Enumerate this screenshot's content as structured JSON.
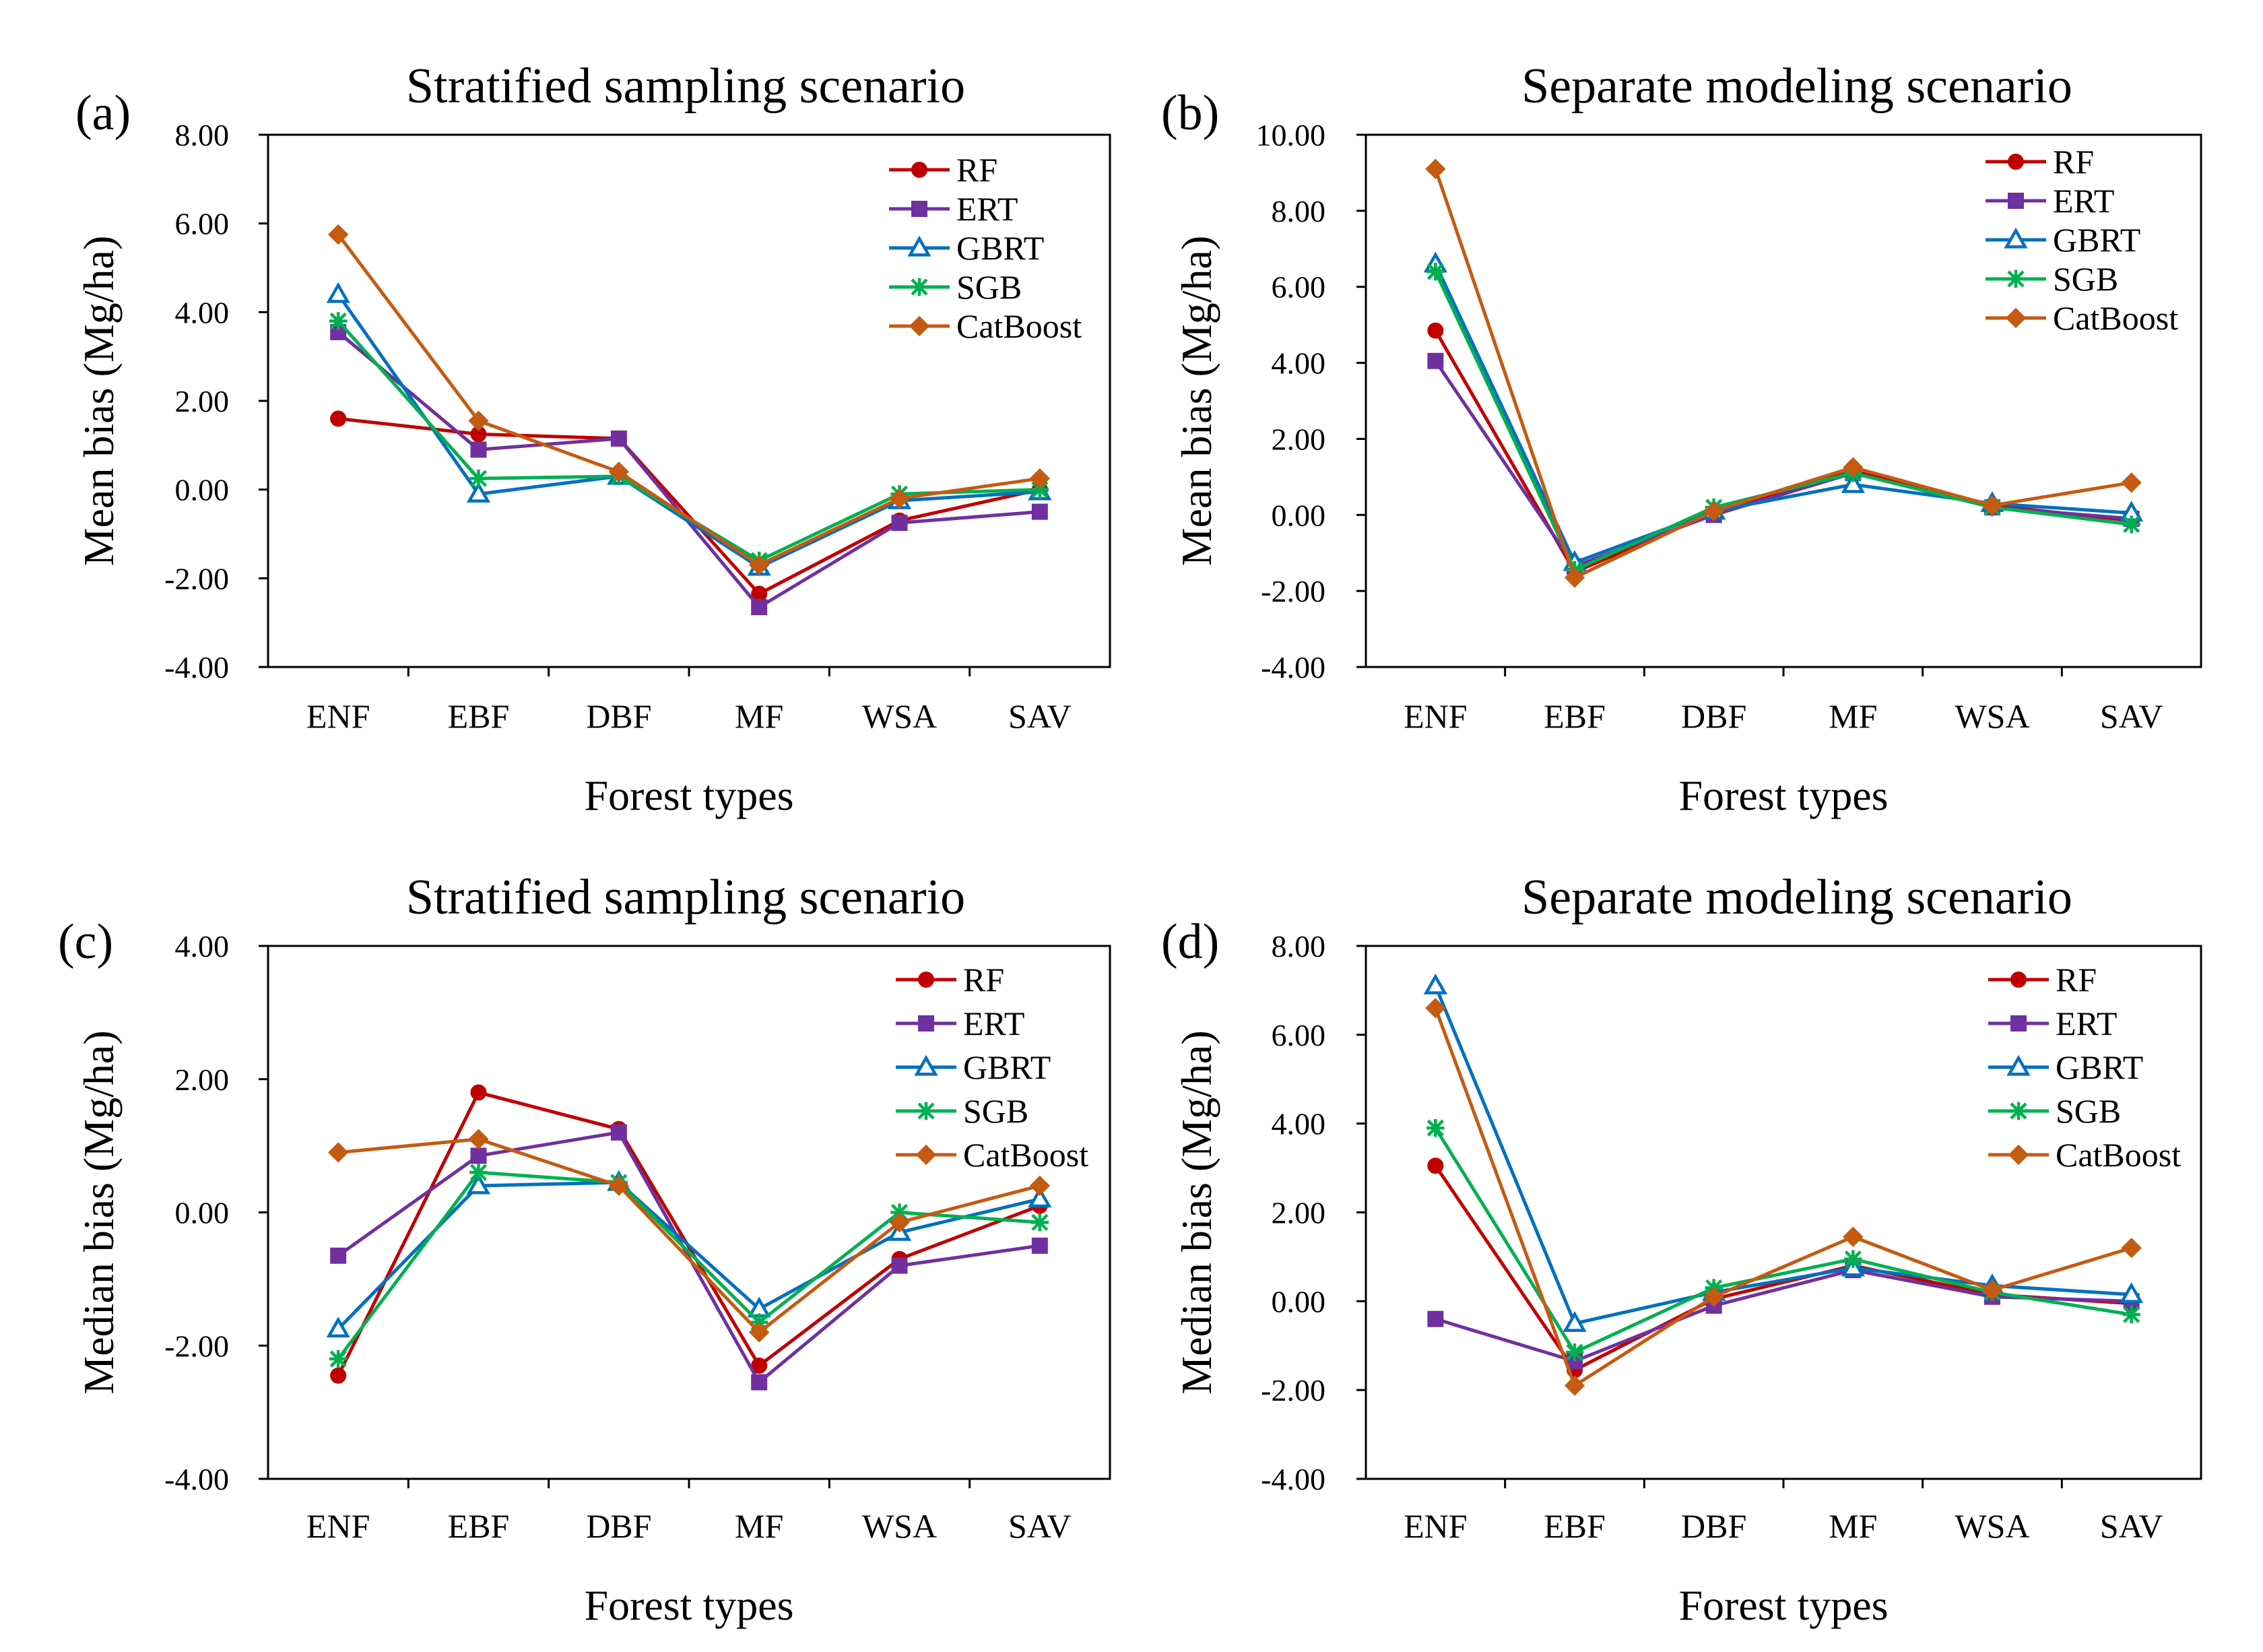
{
  "series_styles": [
    {
      "name": "RF",
      "color": "#c00000",
      "marker": "circle"
    },
    {
      "name": "ERT",
      "color": "#7030a0",
      "marker": "square"
    },
    {
      "name": "GBRT",
      "color": "#0070c0",
      "marker": "triangle-open"
    },
    {
      "name": "SGB",
      "color": "#00b050",
      "marker": "star"
    },
    {
      "name": "CatBoost",
      "color": "#c55a11",
      "marker": "diamond"
    }
  ],
  "chart_data": [
    {
      "type": "line",
      "panel_label": "(a)",
      "title": "Stratified sampling scenario",
      "xlabel": "Forest types",
      "ylabel": "Mean bias (Mg/ha)",
      "ylim": [
        -4,
        8
      ],
      "yticks": [
        "8.00",
        "6.00",
        "4.00",
        "2.00",
        "0.00",
        "-2.00",
        "-4.00"
      ],
      "yticks_values": [
        8,
        6,
        4,
        2,
        0,
        -2,
        -4
      ],
      "categories": [
        "ENF",
        "EBF",
        "DBF",
        "MF",
        "WSA",
        "SAV"
      ],
      "legend_position": "top-right",
      "series": [
        {
          "name": "RF",
          "values": [
            1.6,
            1.25,
            1.15,
            -2.35,
            -0.7,
            0.0
          ]
        },
        {
          "name": "ERT",
          "values": [
            3.55,
            0.9,
            1.15,
            -2.65,
            -0.75,
            -0.5
          ]
        },
        {
          "name": "GBRT",
          "values": [
            4.4,
            -0.1,
            0.3,
            -1.75,
            -0.25,
            -0.05
          ]
        },
        {
          "name": "SGB",
          "values": [
            3.8,
            0.25,
            0.3,
            -1.6,
            -0.1,
            0.0
          ]
        },
        {
          "name": "CatBoost",
          "values": [
            5.75,
            1.55,
            0.4,
            -1.7,
            -0.2,
            0.25
          ]
        }
      ]
    },
    {
      "type": "line",
      "panel_label": "(b)",
      "title": "Separate modeling scenario",
      "xlabel": "Forest types",
      "ylabel": "Mean bias (Mg/ha)",
      "ylim": [
        -4,
        10
      ],
      "yticks": [
        "10.00",
        "8.00",
        "6.00",
        "4.00",
        "2.00",
        "0.00",
        "-2.00",
        "-4.00"
      ],
      "yticks_values": [
        10,
        8,
        6,
        4,
        2,
        0,
        -2,
        -4
      ],
      "categories": [
        "ENF",
        "EBF",
        "DBF",
        "MF",
        "WSA",
        "SAV"
      ],
      "legend_position": "top-right",
      "series": [
        {
          "name": "RF",
          "values": [
            4.85,
            -1.5,
            0.05,
            1.15,
            0.25,
            -0.15
          ]
        },
        {
          "name": "ERT",
          "values": [
            4.05,
            -1.35,
            0.0,
            1.1,
            0.2,
            -0.1
          ]
        },
        {
          "name": "GBRT",
          "values": [
            6.6,
            -1.25,
            0.1,
            0.8,
            0.3,
            0.05
          ]
        },
        {
          "name": "SGB",
          "values": [
            6.4,
            -1.45,
            0.2,
            1.1,
            0.2,
            -0.25
          ]
        },
        {
          "name": "CatBoost",
          "values": [
            9.1,
            -1.65,
            0.1,
            1.25,
            0.25,
            0.85
          ]
        }
      ]
    },
    {
      "type": "line",
      "panel_label": "(c)",
      "title": "Stratified sampling scenario",
      "xlabel": "Forest types",
      "ylabel": "Median bias (Mg/ha)",
      "ylim": [
        -4,
        4
      ],
      "yticks": [
        "4.00",
        "2.00",
        "0.00",
        "-2.00",
        "-4.00"
      ],
      "yticks_values": [
        4,
        2,
        0,
        -2,
        -4
      ],
      "categories": [
        "ENF",
        "EBF",
        "DBF",
        "MF",
        "WSA",
        "SAV"
      ],
      "legend_position": "top-right",
      "series": [
        {
          "name": "RF",
          "values": [
            -2.45,
            1.8,
            1.25,
            -2.3,
            -0.7,
            0.1
          ]
        },
        {
          "name": "ERT",
          "values": [
            -0.65,
            0.85,
            1.2,
            -2.55,
            -0.8,
            -0.5
          ]
        },
        {
          "name": "GBRT",
          "values": [
            -1.75,
            0.4,
            0.45,
            -1.45,
            -0.3,
            0.2
          ]
        },
        {
          "name": "SGB",
          "values": [
            -2.2,
            0.6,
            0.45,
            -1.65,
            0.0,
            -0.15
          ]
        },
        {
          "name": "CatBoost",
          "values": [
            0.9,
            1.1,
            0.4,
            -1.8,
            -0.15,
            0.4
          ]
        }
      ]
    },
    {
      "type": "line",
      "panel_label": "(d)",
      "title": "Separate modeling scenario",
      "xlabel": "Forest types",
      "ylabel": "Median bias (Mg/ha)",
      "ylim": [
        -4,
        8
      ],
      "yticks": [
        "8.00",
        "6.00",
        "4.00",
        "2.00",
        "0.00",
        "-2.00",
        "-4.00"
      ],
      "yticks_values": [
        8,
        6,
        4,
        2,
        0,
        -2,
        -4
      ],
      "categories": [
        "ENF",
        "EBF",
        "DBF",
        "MF",
        "WSA",
        "SAV"
      ],
      "legend_position": "top-right",
      "series": [
        {
          "name": "RF",
          "values": [
            3.05,
            -1.55,
            0.05,
            0.8,
            0.15,
            -0.05
          ]
        },
        {
          "name": "ERT",
          "values": [
            -0.4,
            -1.35,
            -0.1,
            0.7,
            0.1,
            0.0
          ]
        },
        {
          "name": "GBRT",
          "values": [
            7.1,
            -0.5,
            0.2,
            0.75,
            0.35,
            0.15
          ]
        },
        {
          "name": "SGB",
          "values": [
            3.9,
            -1.15,
            0.3,
            0.95,
            0.2,
            -0.3
          ]
        },
        {
          "name": "CatBoost",
          "values": [
            6.6,
            -1.9,
            0.1,
            1.45,
            0.25,
            1.2
          ]
        }
      ]
    }
  ]
}
